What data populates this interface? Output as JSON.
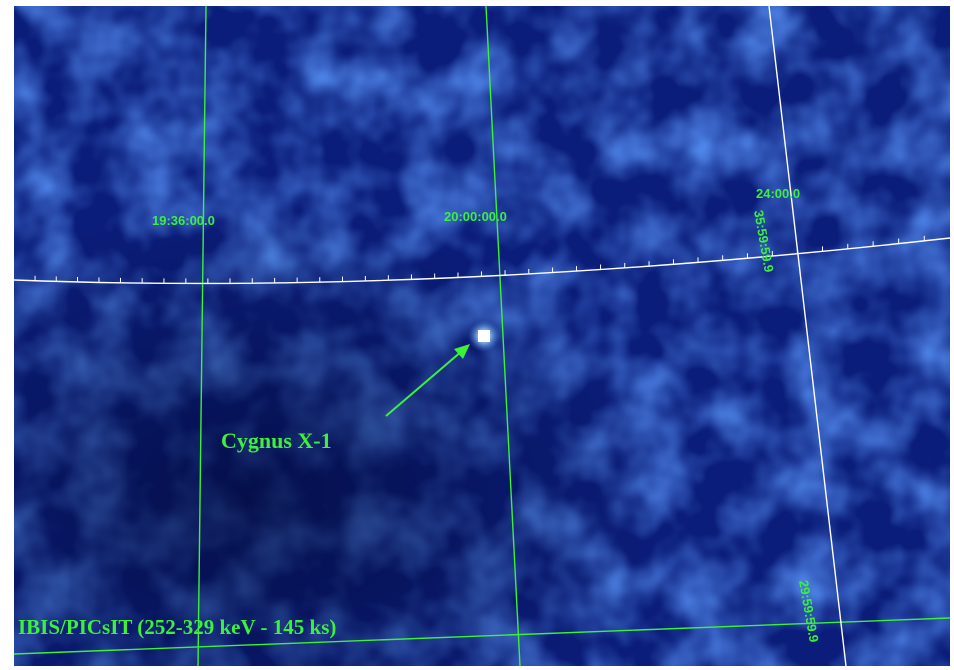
{
  "grid_labels": {
    "ra_1": "19:36:00.0",
    "ra_2": "20:00:00.0",
    "ra_3": "24:00.0",
    "dec_1": "35:59:59.9",
    "dec_2": "29:59:59.9"
  },
  "source_label": "Cygnus X-1",
  "caption": "IBIS/PICsIT (252-329 keV - 145 ks)",
  "colors": {
    "background": "#0a1a6e",
    "grid_green": "#3cf03c",
    "grid_white": "#ffffff",
    "source": "#ffffff"
  }
}
